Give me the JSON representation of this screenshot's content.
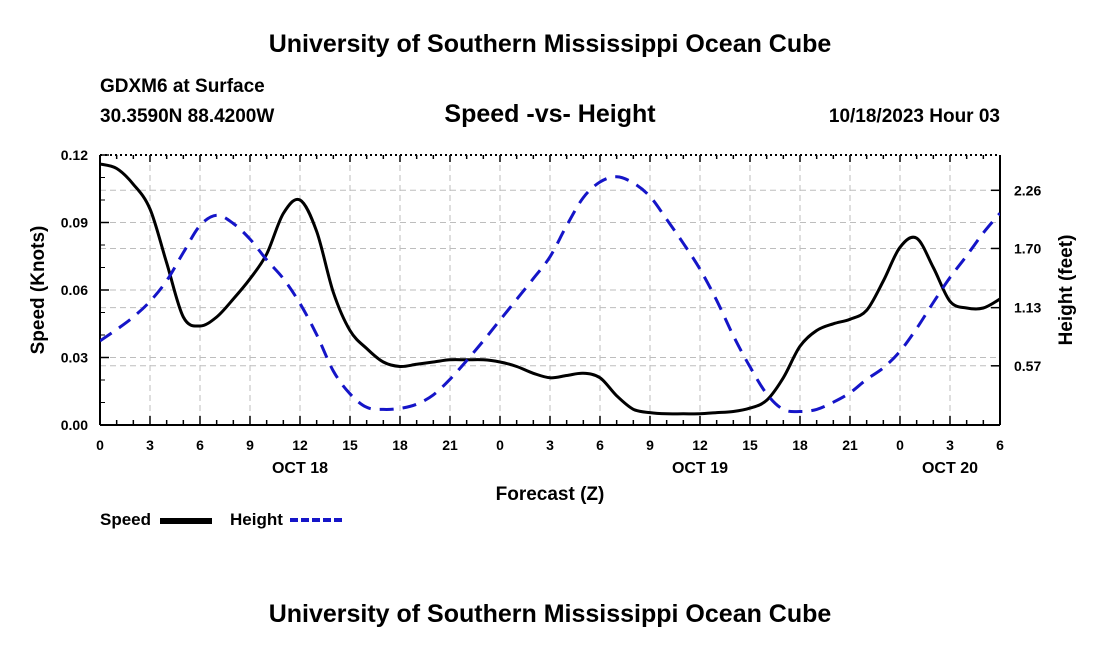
{
  "header": {
    "title": "University of Southern Mississippi Ocean Cube",
    "station": "GDXM6 at Surface",
    "coordinates": "30.3590N  88.4200W",
    "chart_title": "Speed -vs- Height",
    "date": "10/18/2023 Hour 03"
  },
  "footer": {
    "title": "University of Southern Mississippi Ocean Cube"
  },
  "legend": {
    "speed_label": "Speed",
    "height_label": "Height"
  },
  "colors": {
    "speed": "#000000",
    "height": "#1515c8",
    "grid": "#bdbdbd"
  },
  "chart_data": {
    "type": "line",
    "title": "Speed -vs- Height",
    "xlabel": "Forecast (Z)",
    "ylabel": "Speed (Knots)",
    "y2label": "Height (feet)",
    "xlim": [
      0,
      54
    ],
    "ylim": [
      0,
      0.12
    ],
    "y2lim": [
      0,
      2.6
    ],
    "x_ticks": [
      0,
      3,
      6,
      9,
      12,
      15,
      18,
      21,
      24,
      27,
      30,
      33,
      36,
      39,
      42,
      45,
      48,
      51,
      54
    ],
    "x_tick_labels": [
      "0",
      "3",
      "6",
      "9",
      "12",
      "15",
      "18",
      "21",
      "0",
      "3",
      "6",
      "9",
      "12",
      "15",
      "18",
      "21",
      "0",
      "3",
      "6"
    ],
    "y_ticks": [
      0.0,
      0.03,
      0.06,
      0.09,
      0.12
    ],
    "y_tick_labels": [
      "0.00",
      "0.03",
      "0.06",
      "0.09",
      "0.12"
    ],
    "y2_ticks": [
      0.57,
      1.13,
      1.7,
      2.26
    ],
    "y2_tick_labels": [
      "0.57",
      "1.13",
      "1.70",
      "2.26"
    ],
    "date_labels": [
      {
        "x": 12,
        "label": "OCT 18"
      },
      {
        "x": 36,
        "label": "OCT 19"
      },
      {
        "x": 51,
        "label": "OCT 20"
      }
    ],
    "grid": true,
    "series": [
      {
        "name": "Speed",
        "axis": "left",
        "style": "solid",
        "x": [
          0,
          1,
          2,
          3,
          4,
          5,
          6,
          7,
          8,
          9,
          10,
          11,
          12,
          13,
          14,
          15,
          16,
          17,
          18,
          19,
          20,
          21,
          22,
          23,
          24,
          25,
          26,
          27,
          28,
          29,
          30,
          31,
          32,
          33,
          34,
          35,
          36,
          37,
          38,
          39,
          40,
          41,
          42,
          43,
          44,
          45,
          46,
          47,
          48,
          49,
          50,
          51,
          52,
          53,
          54
        ],
        "values": [
          0.116,
          0.114,
          0.107,
          0.096,
          0.072,
          0.048,
          0.044,
          0.048,
          0.056,
          0.065,
          0.076,
          0.094,
          0.1,
          0.086,
          0.059,
          0.042,
          0.034,
          0.028,
          0.026,
          0.027,
          0.028,
          0.029,
          0.029,
          0.029,
          0.028,
          0.026,
          0.023,
          0.021,
          0.022,
          0.023,
          0.021,
          0.013,
          0.007,
          0.0055,
          0.005,
          0.005,
          0.005,
          0.0055,
          0.006,
          0.0075,
          0.011,
          0.021,
          0.035,
          0.042,
          0.045,
          0.047,
          0.051,
          0.064,
          0.079,
          0.083,
          0.07,
          0.055,
          0.052,
          0.052,
          0.056
        ]
      },
      {
        "name": "Height",
        "axis": "right",
        "style": "dashed",
        "x": [
          0,
          1,
          2,
          3,
          4,
          5,
          6,
          7,
          8,
          9,
          10,
          11,
          12,
          13,
          14,
          15,
          16,
          17,
          18,
          19,
          20,
          21,
          22,
          23,
          24,
          25,
          26,
          27,
          28,
          29,
          30,
          31,
          32,
          33,
          34,
          35,
          36,
          37,
          38,
          39,
          40,
          41,
          42,
          43,
          44,
          45,
          46,
          47,
          48,
          49,
          50,
          51,
          52,
          53,
          54
        ],
        "values": [
          0.81,
          0.92,
          1.04,
          1.19,
          1.39,
          1.66,
          1.92,
          2.02,
          1.94,
          1.79,
          1.59,
          1.41,
          1.17,
          0.87,
          0.52,
          0.3,
          0.17,
          0.15,
          0.16,
          0.2,
          0.29,
          0.44,
          0.62,
          0.81,
          1.01,
          1.21,
          1.41,
          1.62,
          1.92,
          2.19,
          2.34,
          2.39,
          2.33,
          2.2,
          1.98,
          1.75,
          1.5,
          1.2,
          0.86,
          0.56,
          0.3,
          0.15,
          0.13,
          0.15,
          0.22,
          0.31,
          0.44,
          0.55,
          0.71,
          0.93,
          1.18,
          1.42,
          1.63,
          1.85,
          2.04
        ]
      }
    ]
  }
}
